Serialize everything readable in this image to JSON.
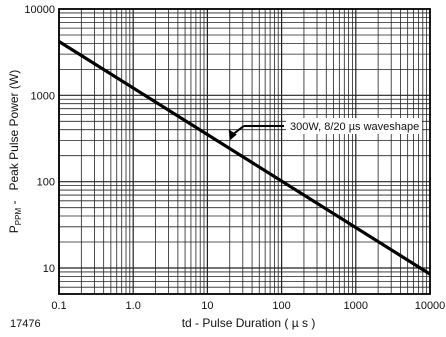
{
  "chart_data": {
    "type": "line",
    "xscale": "log",
    "yscale": "log",
    "xlim": [
      0.1,
      10000
    ],
    "ylim": [
      5,
      10000
    ],
    "x_ticks": [
      0.1,
      1,
      10,
      100,
      1000,
      10000
    ],
    "x_tick_labels": [
      "0.1",
      "1.0",
      "10",
      "100",
      "1000",
      "10000"
    ],
    "y_ticks": [
      10,
      100,
      1000,
      10000
    ],
    "y_tick_labels": [
      "10",
      "100",
      "1000",
      "10000"
    ],
    "xlabel": "td - Pulse Duration ( µ s )",
    "ylabel_main": "P",
    "ylabel_sub": "PPM",
    "ylabel_rest": " -   Peak Pulse Power (W)",
    "grid": true,
    "figure_id": "17476",
    "series": [
      {
        "x": [
          0.1,
          10000
        ],
        "y": [
          4200,
          8.5
        ],
        "color": "#000000"
      }
    ],
    "annotation": {
      "text": "300W, 8/20 µs waveshape",
      "point": [
        20,
        300
      ]
    }
  }
}
